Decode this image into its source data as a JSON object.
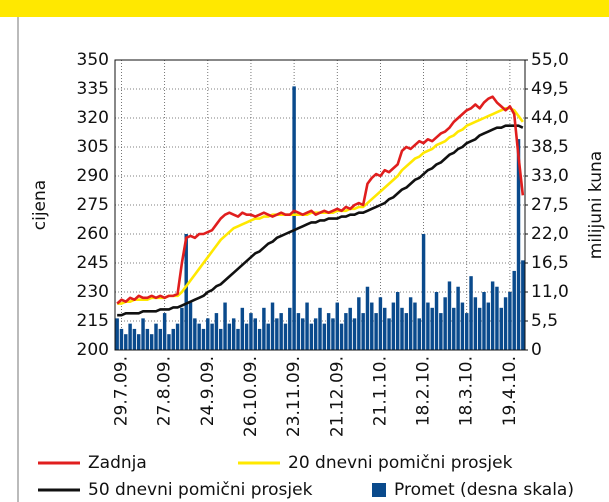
{
  "chart_data": {
    "type": "line",
    "y_label": "cijena",
    "y2_label": "milijuni kuna",
    "categories": [
      null,
      "29.7.09.",
      null,
      null,
      null,
      null,
      null,
      null,
      null,
      null,
      null,
      "27.8.09.",
      null,
      null,
      null,
      null,
      null,
      null,
      null,
      null,
      null,
      "24.9.09.",
      null,
      null,
      null,
      null,
      null,
      null,
      null,
      null,
      null,
      "26.10.09.",
      null,
      null,
      null,
      null,
      null,
      null,
      null,
      null,
      null,
      "23.11.09.",
      null,
      null,
      null,
      null,
      null,
      null,
      null,
      null,
      null,
      "21.12.09.",
      null,
      null,
      null,
      null,
      null,
      null,
      null,
      null,
      null,
      "21.1.10.",
      null,
      null,
      null,
      null,
      null,
      null,
      null,
      null,
      null,
      "18.2.10.",
      null,
      null,
      null,
      null,
      null,
      null,
      null,
      null,
      null,
      "18.3.10.",
      null,
      null,
      null,
      null,
      null,
      null,
      null,
      null,
      null,
      "19.4.10.",
      null,
      null,
      null
    ],
    "series": [
      {
        "name": "Promet (desna skala)",
        "color": "#0a4a8c",
        "axis": "y2",
        "kind": "bar",
        "values": [
          6,
          4,
          3,
          5,
          4,
          3,
          6,
          4,
          3,
          5,
          4,
          7,
          3,
          4,
          5,
          8,
          22,
          9,
          6,
          5,
          4,
          6,
          5,
          7,
          4,
          9,
          5,
          6,
          4,
          8,
          5,
          7,
          6,
          4,
          8,
          5,
          9,
          6,
          7,
          5,
          8,
          50,
          7,
          6,
          9,
          5,
          6,
          8,
          5,
          7,
          6,
          9,
          5,
          7,
          8,
          6,
          10,
          7,
          12,
          9,
          7,
          10,
          8,
          6,
          9,
          11,
          8,
          7,
          10,
          9,
          6,
          22,
          9,
          8,
          11,
          7,
          10,
          13,
          8,
          12,
          9,
          7,
          14,
          10,
          8,
          11,
          9,
          13,
          12,
          8,
          10,
          11,
          15,
          40,
          17
        ]
      },
      {
        "name": "50 dnevni pomični prosjek",
        "color": "#111111",
        "values": [
          218,
          218,
          219,
          219,
          219,
          219,
          220,
          220,
          220,
          220,
          221,
          221,
          221,
          222,
          222,
          223,
          224,
          225,
          226,
          227,
          228,
          230,
          231,
          233,
          234,
          236,
          238,
          240,
          242,
          244,
          246,
          248,
          250,
          251,
          253,
          255,
          256,
          258,
          259,
          260,
          261,
          262,
          263,
          264,
          265,
          266,
          266,
          267,
          267,
          268,
          268,
          268,
          269,
          269,
          270,
          270,
          271,
          271,
          272,
          273,
          274,
          275,
          276,
          278,
          279,
          281,
          283,
          284,
          286,
          288,
          289,
          291,
          293,
          294,
          296,
          297,
          299,
          301,
          302,
          304,
          305,
          307,
          308,
          309,
          311,
          312,
          313,
          314,
          315,
          315,
          316,
          316,
          316,
          316,
          315
        ]
      },
      {
        "name": "20 dnevni pomični prosjek",
        "color": "#ffe800",
        "values": [
          224,
          224,
          225,
          225,
          226,
          226,
          226,
          226,
          227,
          227,
          227,
          227,
          228,
          228,
          228,
          230,
          233,
          236,
          239,
          242,
          245,
          248,
          251,
          254,
          257,
          259,
          261,
          263,
          264,
          265,
          266,
          267,
          268,
          268,
          269,
          269,
          270,
          270,
          270,
          270,
          270,
          270,
          270,
          270,
          270,
          271,
          271,
          271,
          271,
          271,
          271,
          272,
          272,
          272,
          273,
          273,
          274,
          274,
          276,
          278,
          280,
          282,
          284,
          286,
          288,
          290,
          293,
          295,
          297,
          299,
          300,
          302,
          303,
          304,
          306,
          307,
          308,
          310,
          311,
          313,
          314,
          316,
          317,
          318,
          319,
          320,
          321,
          322,
          323,
          324,
          325,
          325,
          324,
          321,
          318
        ]
      },
      {
        "name": "Zadnja",
        "color": "#e01e1e",
        "values": [
          224,
          226,
          225,
          227,
          226,
          228,
          227,
          227,
          228,
          227,
          228,
          227,
          228,
          228,
          229,
          245,
          258,
          259,
          258,
          260,
          260,
          261,
          262,
          265,
          268,
          270,
          271,
          270,
          269,
          271,
          270,
          270,
          269,
          270,
          271,
          270,
          269,
          270,
          271,
          270,
          270,
          272,
          271,
          270,
          271,
          272,
          270,
          271,
          272,
          271,
          272,
          273,
          272,
          274,
          273,
          275,
          276,
          275,
          286,
          289,
          291,
          290,
          293,
          292,
          294,
          296,
          303,
          305,
          304,
          306,
          308,
          307,
          309,
          308,
          310,
          312,
          313,
          315,
          318,
          320,
          322,
          324,
          325,
          327,
          325,
          328,
          330,
          331,
          328,
          326,
          324,
          326,
          322,
          300,
          280
        ]
      }
    ],
    "legend_order": [
      3,
      2,
      1,
      0
    ],
    "ylim": [
      200,
      350
    ],
    "yticks": [
      200,
      215,
      230,
      245,
      260,
      275,
      290,
      305,
      320,
      335,
      350
    ],
    "y2lim": [
      0,
      55
    ],
    "y2ticks": [
      0,
      {
        "value": 5.5,
        "label": "5,5"
      },
      {
        "value": 11,
        "label": "11,0"
      },
      {
        "value": 16.5,
        "label": "16,5"
      },
      {
        "value": 22,
        "label": "22,0"
      },
      {
        "value": 27.5,
        "label": "27,5"
      },
      {
        "value": 33,
        "label": "33,0"
      },
      {
        "value": 38.5,
        "label": "38,5"
      },
      {
        "value": 44,
        "label": "44,0"
      },
      {
        "value": 49.5,
        "label": "49,5"
      },
      {
        "value": 55,
        "label": "55,0"
      }
    ],
    "grid": true
  }
}
